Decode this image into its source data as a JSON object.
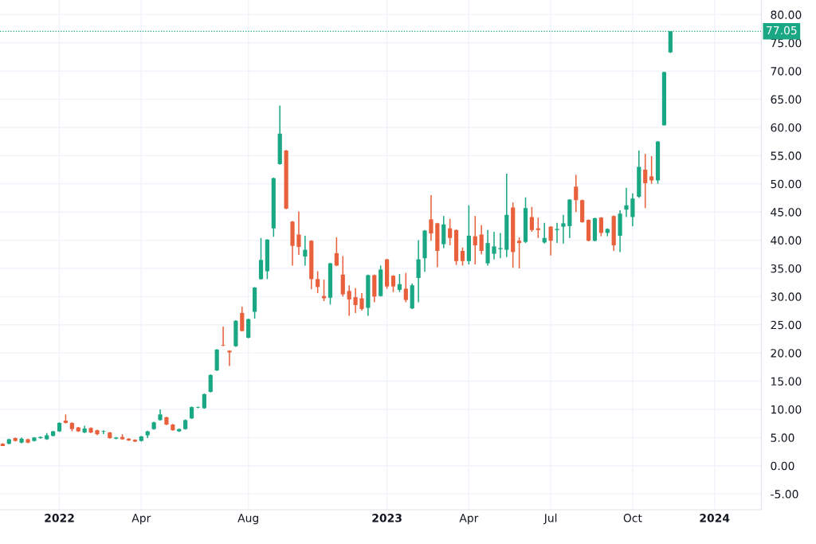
{
  "chart_data": {
    "type": "candlestick",
    "x": [
      "2021-11-01",
      "2021-11-08",
      "2021-11-15",
      "2021-11-22",
      "2021-11-29",
      "2021-12-06",
      "2021-12-13",
      "2021-12-20",
      "2021-12-27",
      "2022-01-03",
      "2022-01-10",
      "2022-01-17",
      "2022-01-24",
      "2022-01-31",
      "2022-02-07",
      "2022-02-14",
      "2022-02-21",
      "2022-02-28",
      "2022-03-07",
      "2022-03-14",
      "2022-03-21",
      "2022-03-28",
      "2022-04-04",
      "2022-04-11",
      "2022-04-18",
      "2022-04-25",
      "2022-05-02",
      "2022-05-09",
      "2022-05-16",
      "2022-05-23",
      "2022-05-30",
      "2022-06-06",
      "2022-06-13",
      "2022-06-20",
      "2022-06-27",
      "2022-07-04",
      "2022-07-11",
      "2022-07-18",
      "2022-07-25",
      "2022-08-01",
      "2022-08-08",
      "2022-08-15",
      "2022-08-22",
      "2022-08-29",
      "2022-09-05",
      "2022-09-12",
      "2022-09-19",
      "2022-09-26",
      "2022-10-03",
      "2022-10-10",
      "2022-10-17",
      "2022-10-24",
      "2022-10-31",
      "2022-11-07",
      "2022-11-14",
      "2022-11-21",
      "2022-11-28",
      "2022-12-05",
      "2022-12-12",
      "2022-12-19",
      "2022-12-26",
      "2023-01-02",
      "2023-01-09",
      "2023-01-16",
      "2023-01-23",
      "2023-01-30",
      "2023-02-06",
      "2023-02-13",
      "2023-02-20",
      "2023-02-27",
      "2023-03-06",
      "2023-03-13",
      "2023-03-20",
      "2023-03-27",
      "2023-04-03",
      "2023-04-10",
      "2023-04-17",
      "2023-04-24",
      "2023-05-01",
      "2023-05-08",
      "2023-05-15",
      "2023-05-22",
      "2023-05-29",
      "2023-06-05",
      "2023-06-12",
      "2023-06-19",
      "2023-06-26",
      "2023-07-03",
      "2023-07-10",
      "2023-07-17",
      "2023-07-24",
      "2023-07-31",
      "2023-08-07",
      "2023-08-14",
      "2023-08-21",
      "2023-08-28",
      "2023-09-04",
      "2023-09-11",
      "2023-09-18",
      "2023-09-25",
      "2023-10-02",
      "2023-10-09",
      "2023-10-16",
      "2023-10-23",
      "2023-10-30",
      "2023-11-06",
      "2023-11-13"
    ],
    "ohlc": [
      [
        3.9,
        4.0,
        3.5,
        3.5
      ],
      [
        3.9,
        4.8,
        3.8,
        4.7
      ],
      [
        4.9,
        5.0,
        4.3,
        4.4
      ],
      [
        4.1,
        5.0,
        4.0,
        4.8
      ],
      [
        4.7,
        4.8,
        4.0,
        4.1
      ],
      [
        4.4,
        5.1,
        4.3,
        5.0
      ],
      [
        4.9,
        5.2,
        4.8,
        5.1
      ],
      [
        4.7,
        5.8,
        4.6,
        5.4
      ],
      [
        5.3,
        6.2,
        5.2,
        6.1
      ],
      [
        6.1,
        7.7,
        6.0,
        7.6
      ],
      [
        8.0,
        9.1,
        7.5,
        7.6
      ],
      [
        7.6,
        7.7,
        6.1,
        6.5
      ],
      [
        6.8,
        6.9,
        6.0,
        6.1
      ],
      [
        5.9,
        7.1,
        5.8,
        6.6
      ],
      [
        6.7,
        6.8,
        5.8,
        5.9
      ],
      [
        6.3,
        6.4,
        5.4,
        5.6
      ],
      [
        6.05,
        6.3,
        5.6,
        6.15
      ],
      [
        5.9,
        6.0,
        4.8,
        4.9
      ],
      [
        4.8,
        5.1,
        4.7,
        5.0
      ],
      [
        5.1,
        5.6,
        4.6,
        4.7
      ],
      [
        4.8,
        4.9,
        4.4,
        4.5
      ],
      [
        4.6,
        4.7,
        4.2,
        4.3
      ],
      [
        4.4,
        5.3,
        4.3,
        5.2
      ],
      [
        5.4,
        6.2,
        4.9,
        6.1
      ],
      [
        6.5,
        7.8,
        6.4,
        7.7
      ],
      [
        8.1,
        10.0,
        8.0,
        9.1
      ],
      [
        8.6,
        8.7,
        7.2,
        7.3
      ],
      [
        7.3,
        7.4,
        6.2,
        6.3
      ],
      [
        6.1,
        6.6,
        6.0,
        6.5
      ],
      [
        6.5,
        8.2,
        6.4,
        8.1
      ],
      [
        8.4,
        10.5,
        8.3,
        10.4
      ],
      [
        10.3,
        10.5,
        10.2,
        10.4
      ],
      [
        10.2,
        12.8,
        10.1,
        12.7
      ],
      [
        13.1,
        16.2,
        13.0,
        16.1
      ],
      [
        16.9,
        20.7,
        16.8,
        20.6
      ],
      [
        21.4,
        24.7,
        21.2,
        21.3
      ],
      [
        20.4,
        20.5,
        17.7,
        20.1
      ],
      [
        21.2,
        25.8,
        21.1,
        25.7
      ],
      [
        27.1,
        28.2,
        23.8,
        23.9
      ],
      [
        22.7,
        26.1,
        22.6,
        26.0
      ],
      [
        27.3,
        31.7,
        26.1,
        31.6
      ],
      [
        33.1,
        40.4,
        33.0,
        36.5
      ],
      [
        34.5,
        40.2,
        33.1,
        40.1
      ],
      [
        42.1,
        51.1,
        40.6,
        51.0
      ],
      [
        53.5,
        63.9,
        53.4,
        58.9
      ],
      [
        55.9,
        56.0,
        45.5,
        45.6
      ],
      [
        43.3,
        43.4,
        35.5,
        39.0
      ],
      [
        41.0,
        45.1,
        37.4,
        38.8
      ],
      [
        37.1,
        40.8,
        35.5,
        38.3
      ],
      [
        39.9,
        40.0,
        31.3,
        33.1
      ],
      [
        33.1,
        34.5,
        30.6,
        31.7
      ],
      [
        30.1,
        33.0,
        29.2,
        29.7
      ],
      [
        29.8,
        36.0,
        28.6,
        35.9
      ],
      [
        37.7,
        40.5,
        35.4,
        35.5
      ],
      [
        33.9,
        37.2,
        30.0,
        30.4
      ],
      [
        31.0,
        32.0,
        26.6,
        29.5
      ],
      [
        29.9,
        31.5,
        27.1,
        28.5
      ],
      [
        29.7,
        30.6,
        27.5,
        27.8
      ],
      [
        28.0,
        33.9,
        26.6,
        33.8
      ],
      [
        33.8,
        33.9,
        29.0,
        30.0
      ],
      [
        30.1,
        35.5,
        30.0,
        34.8
      ],
      [
        36.6,
        36.7,
        31.4,
        31.8
      ],
      [
        33.7,
        33.8,
        30.8,
        31.8
      ],
      [
        31.2,
        34.0,
        30.8,
        32.2
      ],
      [
        31.4,
        34.2,
        29.0,
        29.4
      ],
      [
        27.9,
        32.3,
        27.8,
        32.0
      ],
      [
        33.3,
        40.0,
        29.0,
        36.6
      ],
      [
        36.8,
        41.8,
        34.4,
        41.7
      ],
      [
        43.7,
        48.0,
        39.9,
        41.2
      ],
      [
        43.0,
        43.1,
        35.2,
        38.1
      ],
      [
        39.3,
        44.3,
        38.6,
        42.8
      ],
      [
        42.1,
        43.8,
        39.1,
        40.4
      ],
      [
        41.8,
        41.9,
        35.6,
        36.3
      ],
      [
        38.1,
        38.7,
        35.5,
        36.3
      ],
      [
        36.3,
        46.2,
        35.7,
        40.8
      ],
      [
        40.7,
        44.3,
        35.7,
        39.1
      ],
      [
        41.0,
        42.7,
        37.5,
        38.1
      ],
      [
        35.9,
        41.8,
        35.5,
        39.5
      ],
      [
        37.6,
        41.5,
        36.6,
        38.9
      ],
      [
        38.4,
        41.3,
        36.8,
        38.6
      ],
      [
        38.3,
        51.8,
        37.0,
        44.5
      ],
      [
        45.8,
        46.7,
        35.1,
        37.9
      ],
      [
        39.9,
        40.5,
        35.0,
        39.5
      ],
      [
        39.7,
        47.6,
        39.5,
        45.7
      ],
      [
        44.1,
        45.9,
        41.5,
        41.8
      ],
      [
        42.1,
        44.0,
        40.4,
        41.8
      ],
      [
        39.6,
        43.1,
        39.4,
        40.4
      ],
      [
        42.4,
        42.5,
        37.3,
        39.9
      ],
      [
        41.8,
        43.1,
        39.5,
        42.0
      ],
      [
        42.4,
        44.5,
        39.4,
        43.0
      ],
      [
        42.5,
        47.3,
        40.4,
        47.2
      ],
      [
        49.5,
        51.6,
        45.0,
        47.1
      ],
      [
        47.1,
        47.2,
        43.1,
        43.2
      ],
      [
        43.6,
        43.7,
        39.8,
        39.9
      ],
      [
        39.9,
        44.0,
        39.8,
        43.9
      ],
      [
        44.0,
        44.1,
        40.7,
        41.3
      ],
      [
        41.3,
        42.1,
        40.7,
        42.0
      ],
      [
        44.3,
        44.4,
        38.1,
        39.1
      ],
      [
        40.8,
        45.3,
        37.9,
        44.7
      ],
      [
        45.4,
        49.3,
        44.1,
        46.2
      ],
      [
        44.1,
        48.3,
        42.5,
        47.4
      ],
      [
        47.7,
        55.9,
        47.5,
        53.0
      ],
      [
        52.5,
        55.3,
        45.7,
        50.1
      ],
      [
        51.3,
        54.9,
        50.0,
        50.6
      ],
      [
        50.6,
        57.6,
        50.0,
        57.5
      ],
      [
        60.4,
        69.9,
        60.3,
        69.8
      ],
      [
        73.3,
        77.05,
        73.2,
        77.05
      ]
    ],
    "colors": [
      "#e8603c",
      "#1aa783",
      "#e8603c",
      "#1aa783",
      "#e8603c",
      "#1aa783",
      "#1aa783",
      "#1aa783",
      "#1aa783",
      "#1aa783",
      "#e8603c",
      "#e8603c",
      "#e8603c",
      "#1aa783",
      "#e8603c",
      "#e8603c",
      "#1aa783",
      "#e8603c",
      "#1aa783",
      "#e8603c",
      "#e8603c",
      "#e8603c",
      "#1aa783",
      "#1aa783",
      "#1aa783",
      "#1aa783",
      "#e8603c",
      "#e8603c",
      "#1aa783",
      "#1aa783",
      "#1aa783",
      "#1aa783",
      "#1aa783",
      "#1aa783",
      "#1aa783",
      "#e8603c",
      "#e8603c",
      "#1aa783",
      "#e8603c",
      "#1aa783",
      "#1aa783",
      "#1aa783",
      "#1aa783",
      "#1aa783",
      "#1aa783",
      "#e8603c",
      "#e8603c",
      "#e8603c",
      "#1aa783",
      "#e8603c",
      "#e8603c",
      "#e8603c",
      "#1aa783",
      "#e8603c",
      "#e8603c",
      "#e8603c",
      "#e8603c",
      "#e8603c",
      "#1aa783",
      "#e8603c",
      "#1aa783",
      "#e8603c",
      "#e8603c",
      "#1aa783",
      "#e8603c",
      "#1aa783",
      "#1aa783",
      "#1aa783",
      "#e8603c",
      "#e8603c",
      "#1aa783",
      "#e8603c",
      "#e8603c",
      "#e8603c",
      "#1aa783",
      "#e8603c",
      "#e8603c",
      "#1aa783",
      "#1aa783",
      "#1aa783",
      "#1aa783",
      "#e8603c",
      "#e8603c",
      "#1aa783",
      "#e8603c",
      "#e8603c",
      "#1aa783",
      "#e8603c",
      "#1aa783",
      "#1aa783",
      "#1aa783",
      "#e8603c",
      "#e8603c",
      "#e8603c",
      "#1aa783",
      "#e8603c",
      "#1aa783",
      "#e8603c",
      "#1aa783",
      "#1aa783",
      "#1aa783",
      "#1aa783",
      "#e8603c",
      "#e8603c",
      "#1aa783",
      "#1aa783",
      "#1aa783"
    ],
    "xlim": [
      "2021-10-29",
      "2024-02-22"
    ],
    "xticks": [
      {
        "value": "2022-01-03",
        "label": "2022"
      },
      {
        "value": "2022-04-04",
        "label": "Apr"
      },
      {
        "value": "2022-08-01",
        "label": "Aug"
      },
      {
        "value": "2023-01-02",
        "label": "2023"
      },
      {
        "value": "2023-04-03",
        "label": "Apr"
      },
      {
        "value": "2023-07-03",
        "label": "Jul"
      },
      {
        "value": "2023-10-02",
        "label": "Oct"
      },
      {
        "value": "2024-01-01",
        "label": "2024"
      }
    ],
    "ylim": [
      -7.8,
      82.6
    ],
    "yticks": [
      {
        "value": -5,
        "label": "-5.00"
      },
      {
        "value": 0,
        "label": "0.00"
      },
      {
        "value": 5,
        "label": "5.00"
      },
      {
        "value": 10,
        "label": "10.00"
      },
      {
        "value": 15,
        "label": "15.00"
      },
      {
        "value": 20,
        "label": "20.00"
      },
      {
        "value": 25,
        "label": "25.00"
      },
      {
        "value": 30,
        "label": "30.00"
      },
      {
        "value": 35,
        "label": "35.00"
      },
      {
        "value": 40,
        "label": "40.00"
      },
      {
        "value": 45,
        "label": "45.00"
      },
      {
        "value": 50,
        "label": "50.00"
      },
      {
        "value": 55,
        "label": "55.00"
      },
      {
        "value": 60,
        "label": "60.00"
      },
      {
        "value": 65,
        "label": "65.00"
      },
      {
        "value": 70,
        "label": "70.00"
      },
      {
        "value": 75,
        "label": "75.00"
      },
      {
        "value": 80,
        "label": "80.00"
      }
    ],
    "ref_lines": [
      {
        "axis": "y",
        "value": 77.05,
        "label": "77.05",
        "color": "#1aa783",
        "line_style": "dotted"
      }
    ],
    "grid": true
  }
}
